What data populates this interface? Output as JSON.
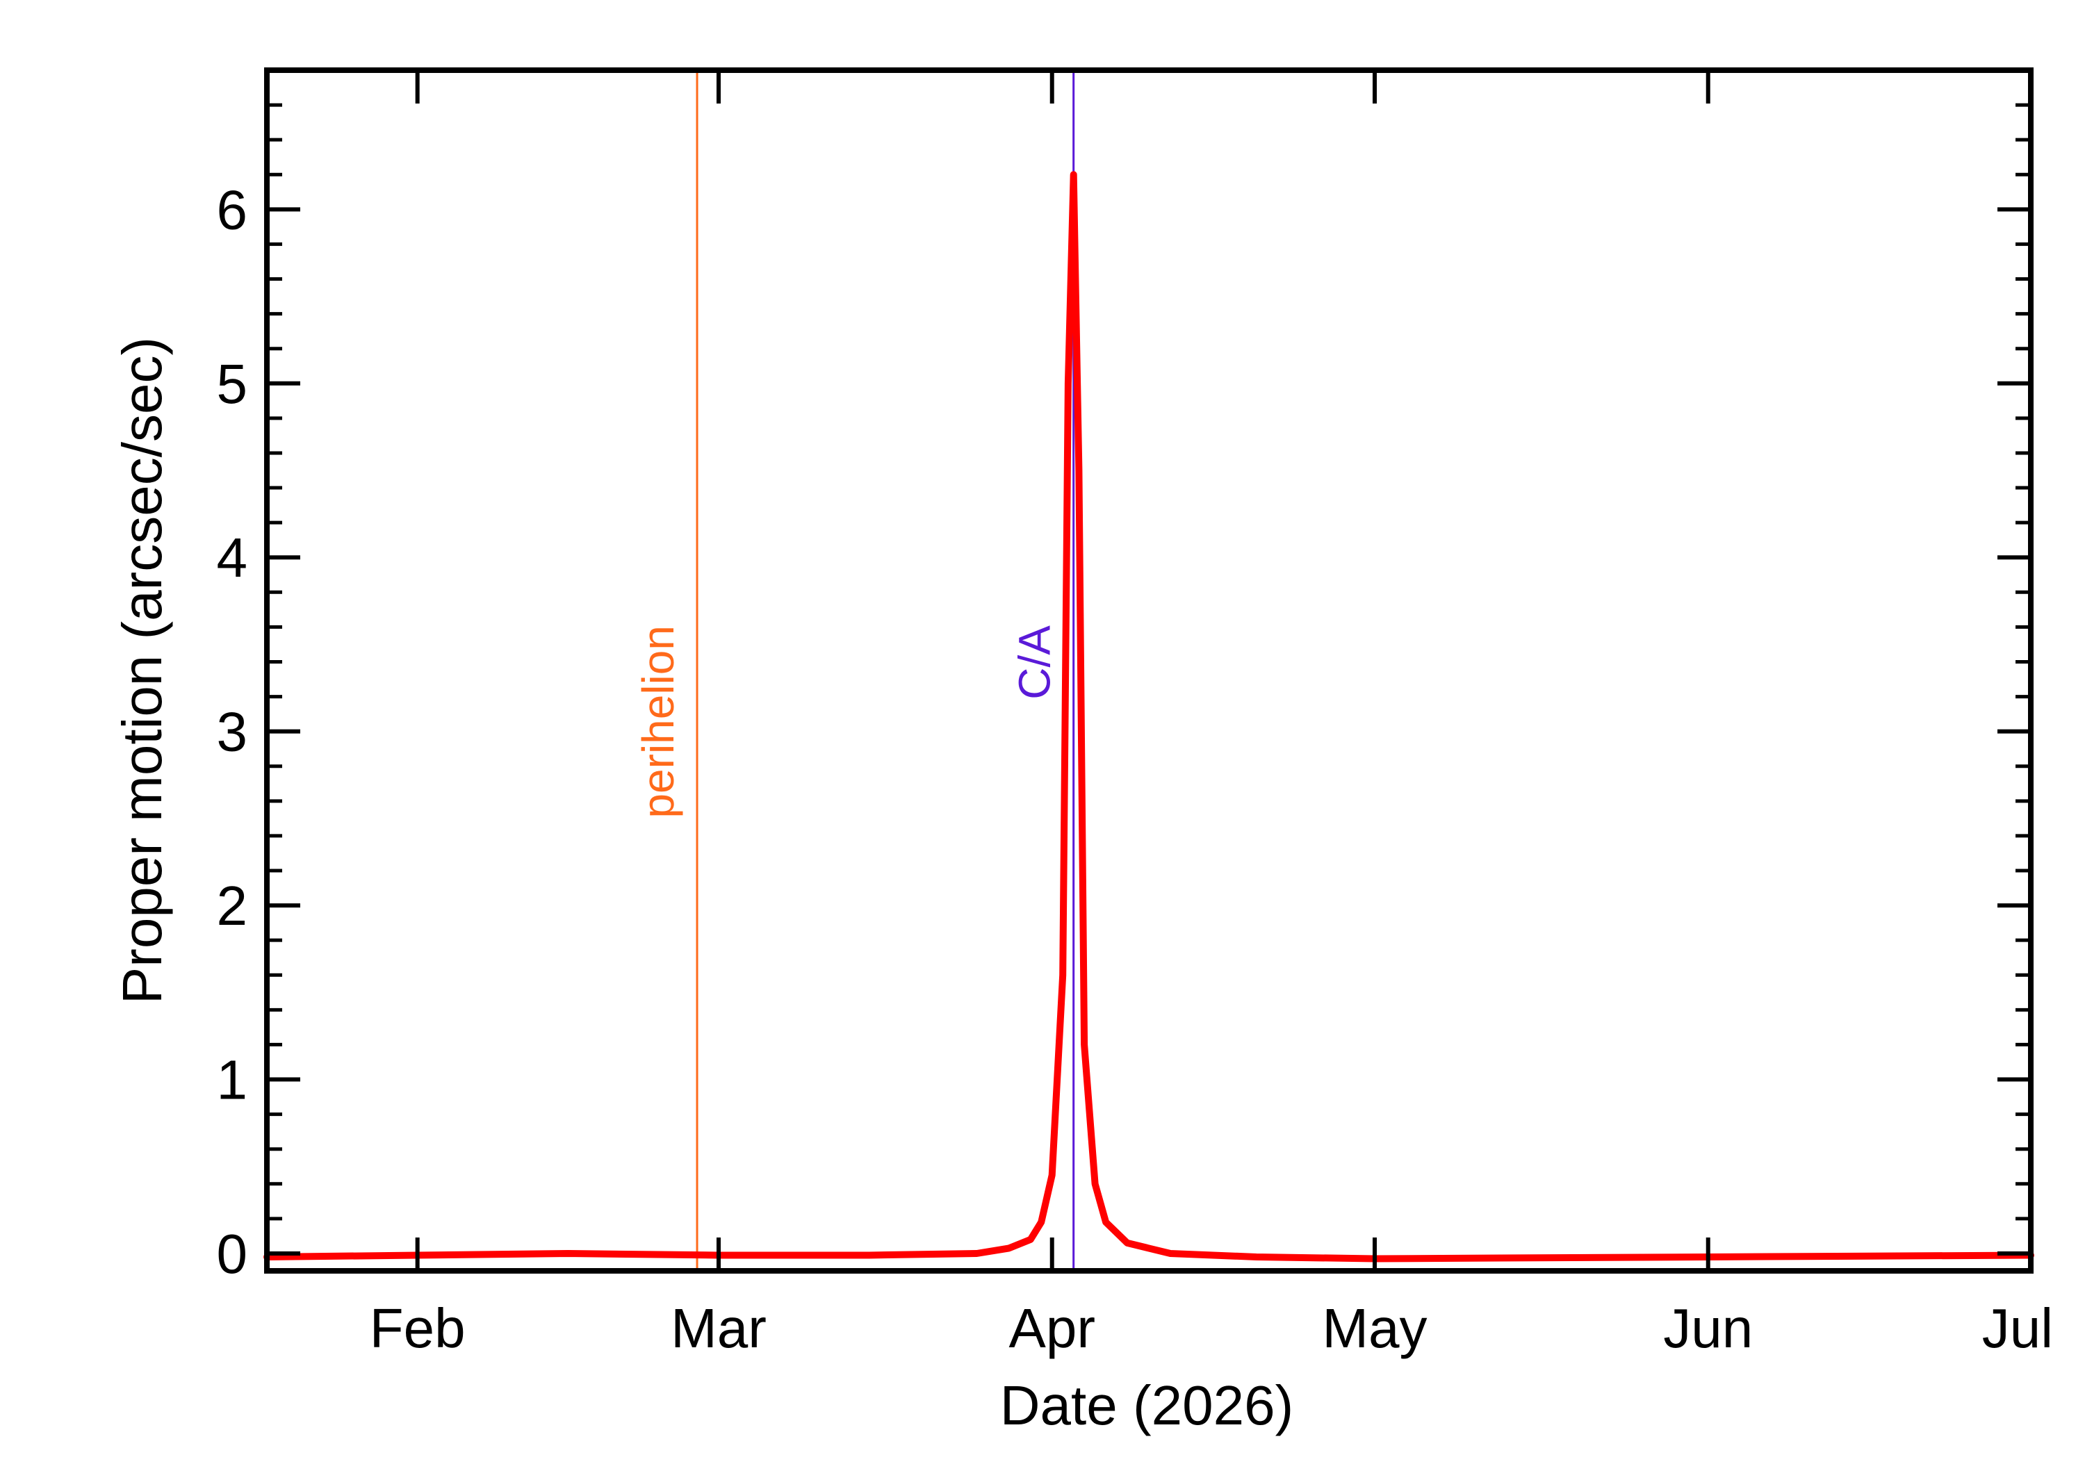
{
  "chart_data": {
    "type": "line",
    "xlabel": "Date (2026)",
    "ylabel": "Proper motion (arcsec/sec)",
    "x_range": [
      "2026-01-18",
      "2026-07-01"
    ],
    "ylim": [
      -0.1,
      6.8
    ],
    "x_ticks": [
      {
        "date": "2026-02-01",
        "label": "Feb"
      },
      {
        "date": "2026-03-01",
        "label": "Mar"
      },
      {
        "date": "2026-04-01",
        "label": "Apr"
      },
      {
        "date": "2026-05-01",
        "label": "May"
      },
      {
        "date": "2026-06-01",
        "label": "Jun"
      },
      {
        "date": "2026-07-01",
        "label": "Jul"
      }
    ],
    "y_ticks": [
      0,
      1,
      2,
      3,
      4,
      5,
      6
    ],
    "y_minor_step": 0.2,
    "annotations": [
      {
        "label": "perihelion",
        "date": "2026-02-27",
        "color": "#ff6a1a"
      },
      {
        "label": "C/A",
        "date": "2026-04-03",
        "color": "#5a1ad8"
      }
    ],
    "series": [
      {
        "color": "#ff0000",
        "points": [
          [
            "2026-01-18",
            -0.02
          ],
          [
            "2026-02-01",
            -0.01
          ],
          [
            "2026-02-15",
            0.0
          ],
          [
            "2026-03-01",
            -0.01
          ],
          [
            "2026-03-15",
            -0.01
          ],
          [
            "2026-03-25",
            0.0
          ],
          [
            "2026-03-28",
            0.03
          ],
          [
            "2026-03-30",
            0.08
          ],
          [
            "2026-03-31",
            0.18
          ],
          [
            "2026-04-01",
            0.45
          ],
          [
            "2026-04-02",
            1.6
          ],
          [
            "2026-04-02T12:00",
            5.0
          ],
          [
            "2026-04-03",
            6.2
          ],
          [
            "2026-04-03T12:00",
            4.5
          ],
          [
            "2026-04-04",
            1.2
          ],
          [
            "2026-04-05",
            0.4
          ],
          [
            "2026-04-06",
            0.18
          ],
          [
            "2026-04-08",
            0.06
          ],
          [
            "2026-04-12",
            0.0
          ],
          [
            "2026-04-20",
            -0.02
          ],
          [
            "2026-05-01",
            -0.03
          ],
          [
            "2026-06-01",
            -0.02
          ],
          [
            "2026-07-01",
            -0.01
          ]
        ]
      }
    ]
  }
}
